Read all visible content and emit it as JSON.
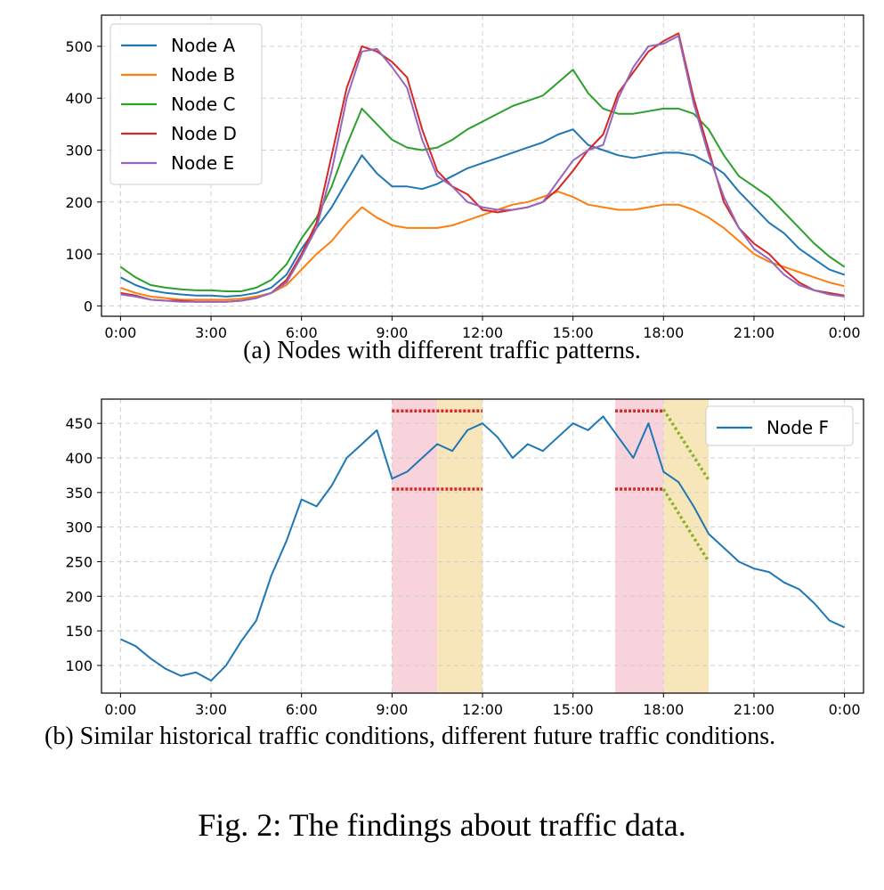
{
  "figure_caption": "Fig. 2: The findings about traffic data.",
  "chart_data": [
    {
      "type": "line",
      "caption": "(a) Nodes with different traffic patterns.",
      "xlabel": "",
      "ylabel": "",
      "x_range_hours": [
        0,
        24
      ],
      "xticks": [
        "0:00",
        "3:00",
        "6:00",
        "9:00",
        "12:00",
        "15:00",
        "18:00",
        "21:00",
        "0:00"
      ],
      "ylim": [
        -20,
        560
      ],
      "yticks": [
        0,
        100,
        200,
        300,
        400,
        500
      ],
      "grid": true,
      "legend_position": "top-left",
      "x": [
        0,
        0.5,
        1,
        1.5,
        2,
        2.5,
        3,
        3.5,
        4,
        4.5,
        5,
        5.5,
        6,
        6.5,
        7,
        7.5,
        8,
        8.5,
        9,
        9.5,
        10,
        10.5,
        11,
        11.5,
        12,
        12.5,
        13,
        13.5,
        14,
        14.5,
        15,
        15.5,
        16,
        16.5,
        17,
        17.5,
        18,
        18.5,
        19,
        19.5,
        20,
        20.5,
        21,
        21.5,
        22,
        22.5,
        23,
        23.5,
        24
      ],
      "series": [
        {
          "name": "Node A",
          "color": "#1f77b4",
          "values": [
            55,
            40,
            30,
            25,
            22,
            20,
            20,
            18,
            20,
            25,
            35,
            60,
            110,
            150,
            190,
            240,
            290,
            255,
            230,
            230,
            225,
            235,
            250,
            265,
            275,
            285,
            295,
            305,
            315,
            330,
            340,
            310,
            300,
            290,
            285,
            290,
            295,
            295,
            290,
            275,
            255,
            220,
            190,
            160,
            140,
            110,
            90,
            70,
            60
          ]
        },
        {
          "name": "Node B",
          "color": "#ff7f0e",
          "values": [
            35,
            25,
            18,
            15,
            12,
            12,
            12,
            12,
            14,
            18,
            25,
            40,
            70,
            100,
            125,
            160,
            190,
            170,
            155,
            150,
            150,
            150,
            155,
            165,
            175,
            185,
            195,
            200,
            210,
            220,
            210,
            195,
            190,
            185,
            185,
            190,
            195,
            195,
            185,
            170,
            150,
            125,
            100,
            85,
            75,
            65,
            55,
            45,
            38
          ]
        },
        {
          "name": "Node C",
          "color": "#2ca02c",
          "values": [
            75,
            55,
            40,
            35,
            32,
            30,
            30,
            28,
            28,
            35,
            50,
            80,
            130,
            170,
            230,
            310,
            380,
            350,
            320,
            305,
            300,
            305,
            320,
            340,
            355,
            370,
            385,
            395,
            405,
            430,
            455,
            410,
            380,
            370,
            370,
            375,
            380,
            380,
            370,
            340,
            290,
            250,
            230,
            210,
            180,
            150,
            120,
            95,
            75
          ]
        },
        {
          "name": "Node D",
          "color": "#d62728",
          "values": [
            25,
            20,
            12,
            10,
            10,
            8,
            8,
            8,
            10,
            15,
            25,
            50,
            100,
            160,
            290,
            420,
            500,
            490,
            470,
            440,
            340,
            260,
            230,
            215,
            185,
            180,
            185,
            190,
            200,
            225,
            260,
            300,
            330,
            410,
            450,
            490,
            510,
            525,
            400,
            300,
            200,
            150,
            120,
            100,
            70,
            45,
            30,
            25,
            20
          ]
        },
        {
          "name": "Node E",
          "color": "#9467bd",
          "values": [
            22,
            18,
            12,
            10,
            8,
            8,
            8,
            8,
            10,
            15,
            25,
            45,
            95,
            150,
            260,
            400,
            490,
            495,
            460,
            420,
            320,
            250,
            230,
            200,
            190,
            185,
            185,
            190,
            200,
            240,
            280,
            300,
            310,
            400,
            460,
            500,
            505,
            520,
            390,
            290,
            210,
            150,
            110,
            90,
            60,
            40,
            30,
            22,
            18
          ]
        }
      ]
    },
    {
      "type": "line",
      "caption": "(b) Similar historical traffic conditions, different future traffic conditions.",
      "xlabel": "",
      "ylabel": "",
      "x_range_hours": [
        0,
        24
      ],
      "xticks": [
        "0:00",
        "3:00",
        "6:00",
        "9:00",
        "12:00",
        "15:00",
        "18:00",
        "21:00",
        "0:00"
      ],
      "ylim": [
        60,
        485
      ],
      "yticks": [
        100,
        150,
        200,
        250,
        300,
        350,
        400,
        450
      ],
      "grid": true,
      "legend_position": "top-right",
      "series": [
        {
          "name": "Node F",
          "color": "#1f77b4",
          "x": [
            0,
            0.5,
            1,
            1.5,
            2,
            2.5,
            3,
            3.5,
            4,
            4.5,
            5,
            5.5,
            6,
            6.5,
            7,
            7.5,
            8,
            8.5,
            9,
            9.5,
            10,
            10.5,
            11,
            11.5,
            12,
            12.5,
            13,
            13.5,
            14,
            14.5,
            15,
            15.5,
            16,
            16.5,
            17,
            17.5,
            18,
            18.5,
            19,
            19.5,
            20,
            20.5,
            21,
            21.5,
            22,
            22.5,
            23,
            23.5,
            24
          ],
          "values": [
            138,
            128,
            110,
            95,
            85,
            90,
            78,
            100,
            135,
            165,
            230,
            280,
            340,
            330,
            360,
            400,
            420,
            440,
            370,
            380,
            400,
            420,
            410,
            440,
            450,
            430,
            400,
            420,
            410,
            430,
            450,
            440,
            460,
            430,
            400,
            450,
            380,
            365,
            330,
            290,
            270,
            250,
            240,
            235,
            220,
            210,
            190,
            165,
            155
          ]
        }
      ],
      "shaded_regions": [
        {
          "start": 9.0,
          "end": 10.5,
          "color": "#f9d3dc"
        },
        {
          "start": 10.5,
          "end": 12.0,
          "color": "#f8e6bb"
        },
        {
          "start": 16.4,
          "end": 18.0,
          "color": "#f9d3dc"
        },
        {
          "start": 18.0,
          "end": 19.5,
          "color": "#f8e6bb"
        }
      ],
      "red_dotted_lines": [
        {
          "x": [
            9.0,
            12.0
          ],
          "y": 468
        },
        {
          "x": [
            9.0,
            12.0
          ],
          "y": 355
        },
        {
          "x": [
            16.4,
            18.0
          ],
          "y": 468
        },
        {
          "x": [
            16.4,
            18.0
          ],
          "y": 355
        }
      ],
      "green_dotted_lines": [
        {
          "x": [
            18.0,
            19.5
          ],
          "y": [
            470,
            368
          ]
        },
        {
          "x": [
            18.0,
            19.5
          ],
          "y": [
            355,
            250
          ]
        }
      ]
    }
  ]
}
